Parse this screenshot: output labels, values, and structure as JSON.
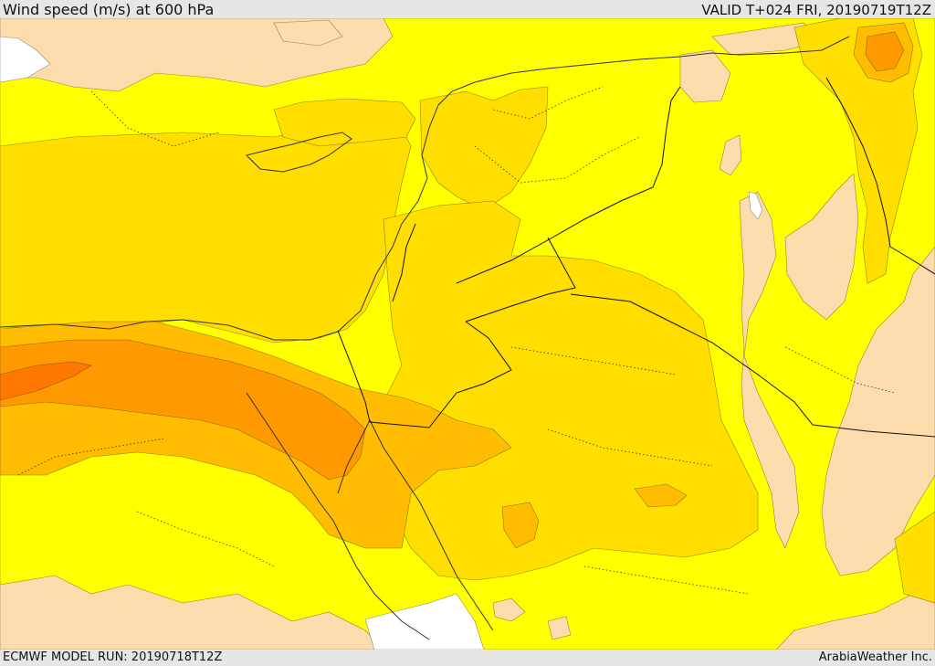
{
  "header": {
    "title": "Wind speed (m/s) at 600 hPa",
    "valid": "VALID T+024 FRI, 20190719T12Z"
  },
  "footer": {
    "model_run": "ECMWF MODEL RUN: 20190718T12Z",
    "credit": "ArabiaWeather Inc."
  },
  "colors": {
    "calm": "#fcdcac",
    "light": "#ffff00",
    "moderate": "#ffde00",
    "fresh": "#ffbc00",
    "strong": "#ff9900",
    "very_strong": "#ff7800",
    "water_gap": "#ffffff",
    "outline": "#333333",
    "border": "#111111"
  }
}
